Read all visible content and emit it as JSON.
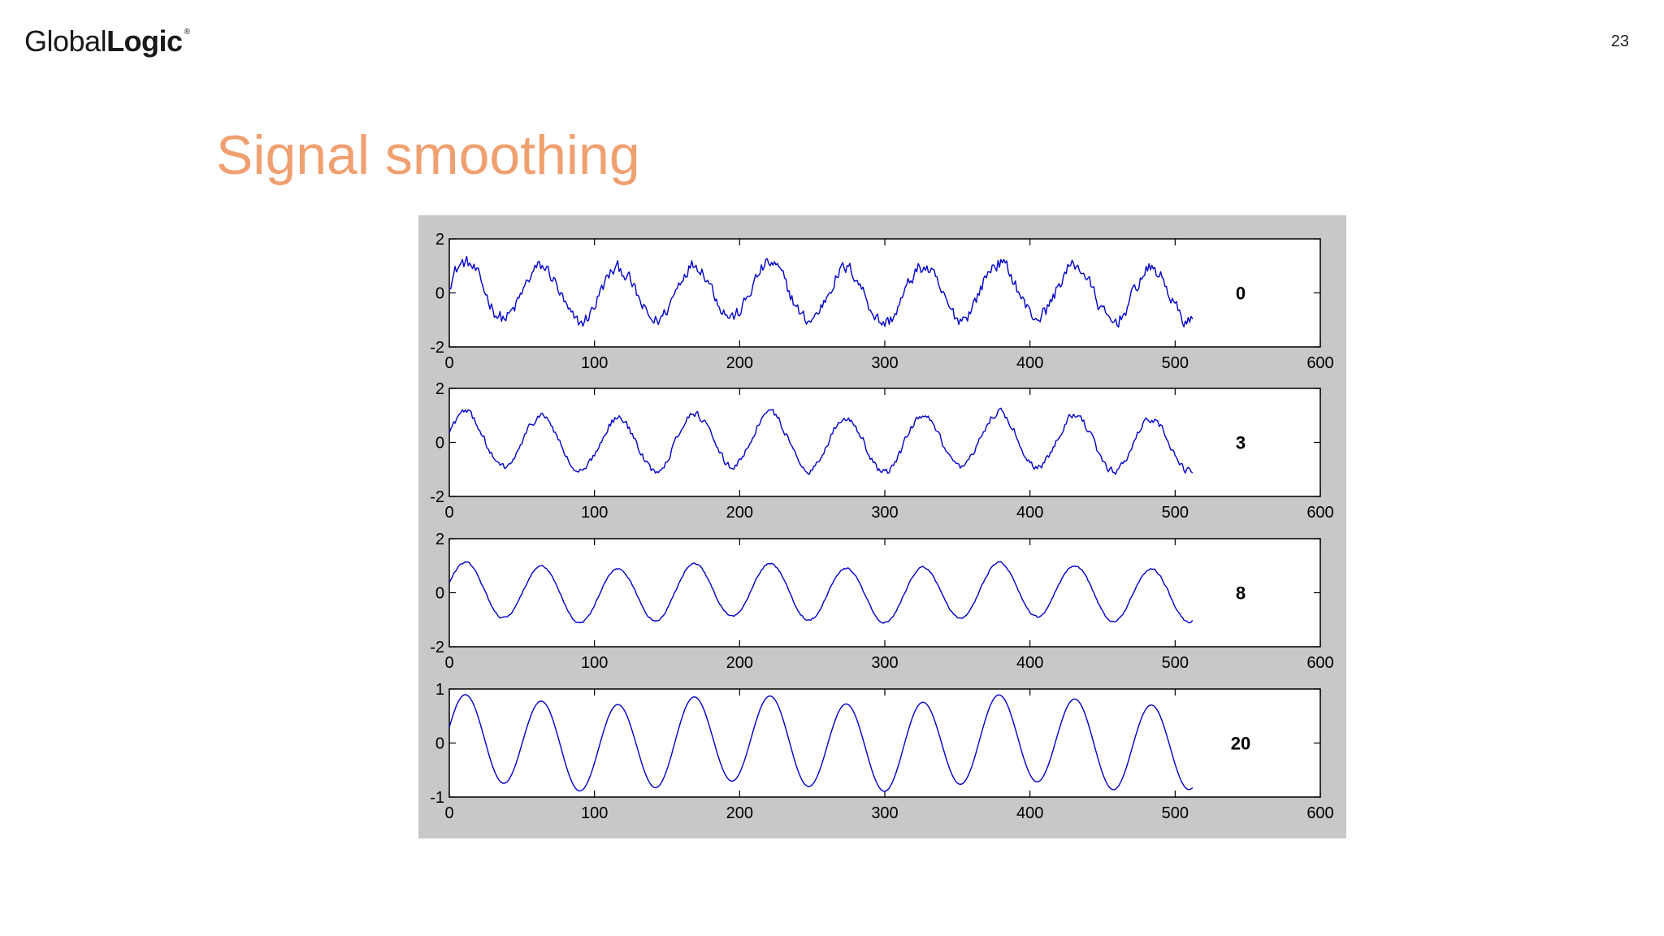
{
  "header": {
    "logo_regular": "Global",
    "logo_bold": "Logic",
    "logo_mark": "®",
    "page_number": "23"
  },
  "slide": {
    "title": "Signal smoothing"
  },
  "colors": {
    "title": "#f0a070",
    "series": "#0000cc",
    "figure_background": "#c8c8c8",
    "axes_background": "#ffffff"
  },
  "chart_data": [
    {
      "type": "line",
      "label": "0",
      "xlim": [
        0,
        600
      ],
      "ylim": [
        -2,
        2
      ],
      "xticks": [
        0,
        100,
        200,
        300,
        400,
        500,
        600
      ],
      "yticks": [
        2,
        0,
        -2
      ],
      "period": 52.5,
      "amplitude": 1.0,
      "noise": 0.42,
      "x_end": 512,
      "series": [
        {
          "color": "#0000cc"
        }
      ]
    },
    {
      "type": "line",
      "label": "3",
      "xlim": [
        0,
        600
      ],
      "ylim": [
        -2,
        2
      ],
      "xticks": [
        0,
        100,
        200,
        300,
        400,
        500,
        600
      ],
      "yticks": [
        2,
        0,
        -2
      ],
      "period": 52.5,
      "amplitude": 1.0,
      "noise": 0.22,
      "x_end": 512,
      "series": [
        {
          "color": "#0000cc"
        }
      ]
    },
    {
      "type": "line",
      "label": "8",
      "xlim": [
        0,
        600
      ],
      "ylim": [
        -2,
        2
      ],
      "xticks": [
        0,
        100,
        200,
        300,
        400,
        500,
        600
      ],
      "yticks": [
        2,
        0,
        -2
      ],
      "period": 52.5,
      "amplitude": 1.0,
      "noise": 0.06,
      "x_end": 512,
      "series": [
        {
          "color": "#0000cc"
        }
      ]
    },
    {
      "type": "line",
      "label": "20",
      "xlim": [
        0,
        600
      ],
      "ylim": [
        -1,
        1
      ],
      "xticks": [
        0,
        100,
        200,
        300,
        400,
        500,
        600
      ],
      "yticks": [
        1,
        0,
        -1
      ],
      "period": 52.5,
      "amplitude": 0.8,
      "noise": 0.0,
      "x_end": 512,
      "series": [
        {
          "color": "#0000cc"
        }
      ]
    }
  ]
}
